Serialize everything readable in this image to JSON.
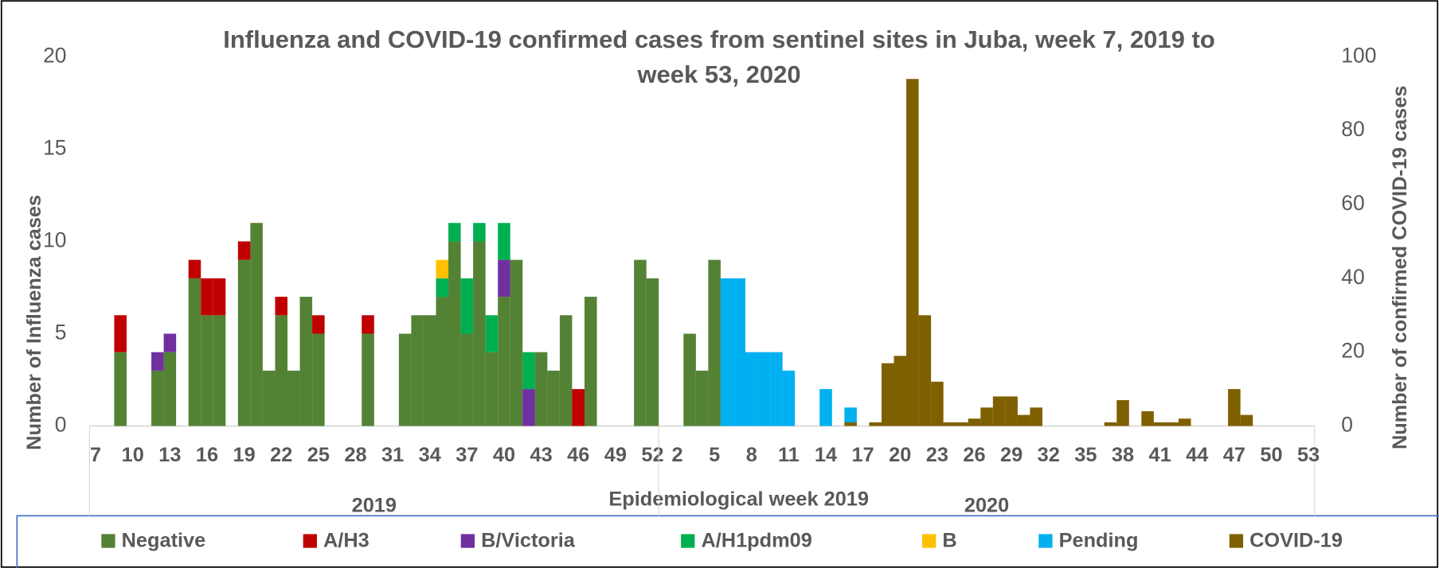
{
  "chart_data": {
    "type": "bar",
    "stacked": true,
    "title": "Influenza and COVID-19 confirmed cases from sentinel sites in Juba, week 7, 2019 to week 53, 2020",
    "y_label": "Number of Influenza cases",
    "y2_label": "Number of confirmed COVID-19 cases",
    "x_label": "Epidemiological week 2019",
    "groups": [
      {
        "label": "2019",
        "start": 0,
        "end": 45
      },
      {
        "label": "2020",
        "start": 46,
        "end": 98
      }
    ],
    "categories": [
      "7",
      null,
      null,
      "10",
      null,
      null,
      "13",
      null,
      null,
      "16",
      null,
      null,
      "19",
      null,
      null,
      "22",
      null,
      null,
      "25",
      null,
      null,
      "28",
      null,
      null,
      "31",
      null,
      null,
      "34",
      null,
      null,
      "37",
      null,
      null,
      "40",
      null,
      null,
      "43",
      null,
      null,
      "46",
      null,
      null,
      "49",
      null,
      null,
      "52",
      null,
      "2",
      null,
      null,
      "5",
      null,
      null,
      "8",
      null,
      null,
      "11",
      null,
      null,
      "14",
      null,
      null,
      "17",
      null,
      null,
      "20",
      null,
      null,
      "23",
      null,
      null,
      "26",
      null,
      null,
      "29",
      null,
      null,
      "32",
      null,
      null,
      "35",
      null,
      null,
      "38",
      null,
      null,
      "41",
      null,
      null,
      "44",
      null,
      null,
      "47",
      null,
      null,
      "50",
      null,
      null,
      "53"
    ],
    "ylim": [
      0,
      20
    ],
    "yticks": [
      0,
      5,
      10,
      15,
      20
    ],
    "y2lim": [
      0,
      100
    ],
    "y2ticks": [
      0,
      20,
      40,
      60,
      80,
      100
    ],
    "series": [
      {
        "name": "Negative",
        "color": "#548235",
        "values": [
          0,
          0,
          4,
          0,
          0,
          3,
          4,
          0,
          8,
          6,
          6,
          0,
          9,
          11,
          3,
          6,
          3,
          7,
          5,
          0,
          0,
          0,
          5,
          0,
          0,
          5,
          6,
          6,
          7,
          10,
          5,
          10,
          4,
          7,
          9,
          0,
          4,
          3,
          6,
          0,
          7,
          0,
          0,
          0,
          9,
          8,
          0,
          0,
          5,
          3,
          9,
          0,
          0,
          0,
          0,
          0,
          0,
          0,
          0,
          0,
          0,
          0,
          0,
          0,
          0,
          0,
          0,
          0,
          0,
          0,
          0,
          0,
          0,
          0,
          0,
          0,
          0,
          0,
          0,
          0,
          0,
          0,
          0,
          0,
          0,
          0,
          0,
          0,
          0,
          0,
          0,
          0,
          0,
          0,
          0,
          0,
          0,
          0,
          0
        ]
      },
      {
        "name": "A/H3",
        "color": "#c00000",
        "values": [
          0,
          0,
          2,
          0,
          0,
          0,
          0,
          0,
          1,
          2,
          2,
          0,
          1,
          0,
          0,
          1,
          0,
          0,
          1,
          0,
          0,
          0,
          1,
          0,
          0,
          0,
          0,
          0,
          0,
          0,
          0,
          0,
          0,
          0,
          0,
          0,
          0,
          0,
          0,
          2,
          0,
          0,
          0,
          0,
          0,
          0,
          0,
          0,
          0,
          0,
          0,
          0,
          0,
          0,
          0,
          0,
          0,
          0,
          0,
          0,
          0,
          0,
          0,
          0,
          0,
          0,
          0,
          0,
          0,
          0,
          0,
          0,
          0,
          0,
          0,
          0,
          0,
          0,
          0,
          0,
          0,
          0,
          0,
          0,
          0,
          0,
          0,
          0,
          0,
          0,
          0,
          0,
          0,
          0,
          0,
          0,
          0,
          0,
          0
        ]
      },
      {
        "name": "B/Victoria",
        "color": "#7030a0",
        "values": [
          0,
          0,
          0,
          0,
          0,
          1,
          1,
          0,
          0,
          0,
          0,
          0,
          0,
          0,
          0,
          0,
          0,
          0,
          0,
          0,
          0,
          0,
          0,
          0,
          0,
          0,
          0,
          0,
          0,
          0,
          0,
          0,
          0,
          2,
          0,
          2,
          0,
          0,
          0,
          0,
          0,
          0,
          0,
          0,
          0,
          0,
          0,
          0,
          0,
          0,
          0,
          0,
          0,
          0,
          0,
          0,
          0,
          0,
          0,
          0,
          0,
          0,
          0,
          0,
          0,
          0,
          0,
          0,
          0,
          0,
          0,
          0,
          0,
          0,
          0,
          0,
          0,
          0,
          0,
          0,
          0,
          0,
          0,
          0,
          0,
          0,
          0,
          0,
          0,
          0,
          0,
          0,
          0,
          0,
          0,
          0,
          0,
          0,
          0
        ]
      },
      {
        "name": "A/H1pdm09",
        "color": "#00b050",
        "values": [
          0,
          0,
          0,
          0,
          0,
          0,
          0,
          0,
          0,
          0,
          0,
          0,
          0,
          0,
          0,
          0,
          0,
          0,
          0,
          0,
          0,
          0,
          0,
          0,
          0,
          0,
          0,
          0,
          1,
          1,
          3,
          1,
          2,
          2,
          0,
          2,
          0,
          0,
          0,
          0,
          0,
          0,
          0,
          0,
          0,
          0,
          0,
          0,
          0,
          0,
          0,
          0,
          0,
          0,
          0,
          0,
          0,
          0,
          0,
          0,
          0,
          0,
          0,
          0,
          0,
          0,
          0,
          0,
          0,
          0,
          0,
          0,
          0,
          0,
          0,
          0,
          0,
          0,
          0,
          0,
          0,
          0,
          0,
          0,
          0,
          0,
          0,
          0,
          0,
          0,
          0,
          0,
          0,
          0,
          0,
          0,
          0,
          0,
          0
        ]
      },
      {
        "name": "B",
        "color": "#ffc000",
        "values": [
          0,
          0,
          0,
          0,
          0,
          0,
          0,
          0,
          0,
          0,
          0,
          0,
          0,
          0,
          0,
          0,
          0,
          0,
          0,
          0,
          0,
          0,
          0,
          0,
          0,
          0,
          0,
          0,
          1,
          0,
          0,
          0,
          0,
          0,
          0,
          0,
          0,
          0,
          0,
          0,
          0,
          0,
          0,
          0,
          0,
          0,
          0,
          0,
          0,
          0,
          0,
          0,
          0,
          0,
          0,
          0,
          0,
          0,
          0,
          0,
          0,
          0,
          0,
          0,
          0,
          0,
          0,
          0,
          0,
          0,
          0,
          0,
          0,
          0,
          0,
          0,
          0,
          0,
          0,
          0,
          0,
          0,
          0,
          0,
          0,
          0,
          0,
          0,
          0,
          0,
          0,
          0,
          0,
          0,
          0,
          0,
          0,
          0,
          0
        ]
      },
      {
        "name": "Pending",
        "color": "#00b0f0",
        "values": [
          0,
          0,
          0,
          0,
          0,
          0,
          0,
          0,
          0,
          0,
          0,
          0,
          0,
          0,
          0,
          0,
          0,
          0,
          0,
          0,
          0,
          0,
          0,
          0,
          0,
          0,
          0,
          0,
          0,
          0,
          0,
          0,
          0,
          0,
          0,
          0,
          0,
          0,
          0,
          0,
          0,
          0,
          0,
          0,
          0,
          0,
          0,
          0,
          0,
          0,
          0,
          8,
          8,
          4,
          4,
          4,
          3,
          0,
          0,
          2,
          0,
          1,
          0,
          0,
          0,
          0,
          0,
          0,
          0,
          0,
          0,
          0,
          0,
          0,
          0,
          0,
          0,
          0,
          0,
          0,
          0,
          0,
          0,
          0,
          0,
          0,
          0,
          0,
          0,
          0,
          0,
          0,
          0,
          0,
          0,
          0,
          0,
          0,
          0
        ]
      },
      {
        "name": "COVID-19",
        "color": "#7f6000",
        "axis": "y2",
        "values": [
          0,
          0,
          0,
          0,
          0,
          0,
          0,
          0,
          0,
          0,
          0,
          0,
          0,
          0,
          0,
          0,
          0,
          0,
          0,
          0,
          0,
          0,
          0,
          0,
          0,
          0,
          0,
          0,
          0,
          0,
          0,
          0,
          0,
          0,
          0,
          0,
          0,
          0,
          0,
          0,
          0,
          0,
          0,
          0,
          0,
          0,
          0,
          0,
          0,
          0,
          0,
          0,
          0,
          0,
          0,
          0,
          0,
          0,
          0,
          0,
          0,
          1,
          0,
          1,
          17,
          19,
          94,
          30,
          12,
          1,
          1,
          2,
          5,
          8,
          8,
          3,
          5,
          0,
          0,
          0,
          0,
          0,
          1,
          7,
          0,
          4,
          1,
          1,
          2,
          0,
          0,
          0,
          10,
          3,
          0,
          0,
          0,
          0,
          0
        ]
      }
    ]
  }
}
